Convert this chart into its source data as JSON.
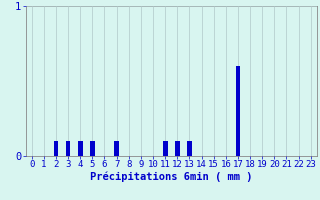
{
  "hours": [
    0,
    1,
    2,
    3,
    4,
    5,
    6,
    7,
    8,
    9,
    10,
    11,
    12,
    13,
    14,
    15,
    16,
    17,
    18,
    19,
    20,
    21,
    22,
    23
  ],
  "values": [
    0,
    0,
    0.1,
    0.1,
    0.1,
    0.1,
    0,
    0.1,
    0,
    0,
    0,
    0.1,
    0.1,
    0.1,
    0,
    0,
    0,
    0.6,
    0,
    0,
    0,
    0,
    0,
    0
  ],
  "bar_color": "#0000cc",
  "background_color": "#d8f5f0",
  "plot_bg_color": "#d8f5f0",
  "grid_color": "#b0c8c8",
  "axis_color": "#888888",
  "text_color": "#0000cc",
  "xlabel": "Précipitations 6min ( mm )",
  "ylim": [
    0,
    1.0
  ],
  "yticks": [
    0,
    1
  ],
  "xlim": [
    -0.5,
    23.5
  ],
  "label_fontsize": 6.5
}
